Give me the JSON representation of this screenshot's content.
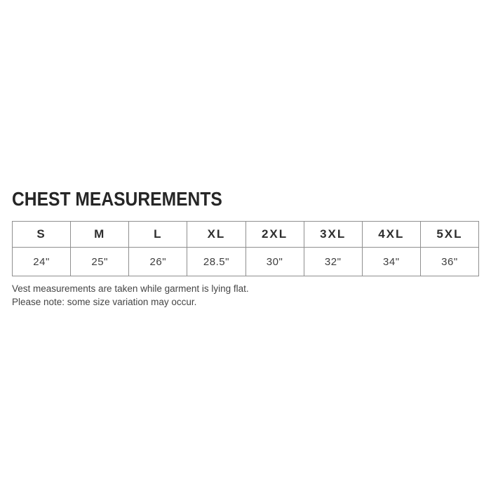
{
  "title": "CHEST MEASUREMENTS",
  "chart_data": {
    "type": "table",
    "title": "CHEST MEASUREMENTS",
    "columns": [
      "S",
      "M",
      "L",
      "XL",
      "2XL",
      "3XL",
      "4XL",
      "5XL"
    ],
    "rows": [
      [
        "24\"",
        "25\"",
        "26\"",
        "28.5\"",
        "30\"",
        "32\"",
        "34\"",
        "36\""
      ]
    ],
    "layout_hints": {
      "header_row": true,
      "grid": true,
      "border_color": "#8f8f8f",
      "equal_column_widths": true
    }
  },
  "notes": {
    "line1": "Vest measurements are taken while garment is lying flat.",
    "line2": "Please note: some size variation may occur."
  },
  "colors": {
    "background": "#ffffff",
    "title_text": "#262626",
    "cell_text": "#3d3d3d",
    "note_text": "#454545",
    "table_border": "#8f8f8f"
  }
}
